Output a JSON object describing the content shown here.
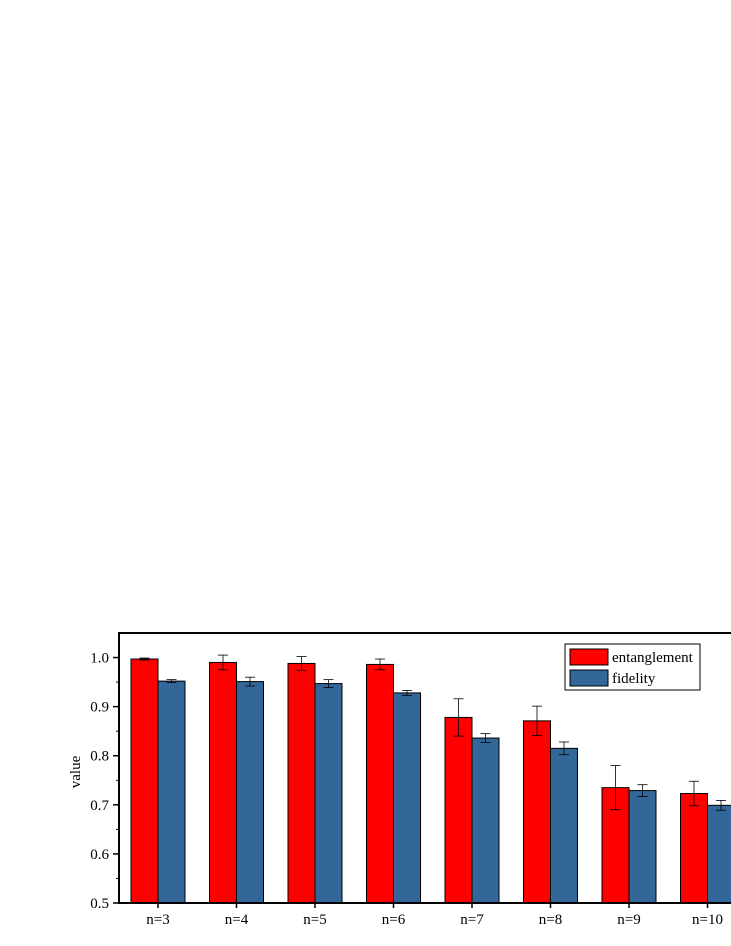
{
  "chart_data": {
    "type": "bar",
    "categories": [
      "n=3",
      "n=4",
      "n=5",
      "n=6",
      "n=7",
      "n=8",
      "n=9",
      "n=10"
    ],
    "series": [
      {
        "name": "entanglement",
        "color": "#ff0000",
        "values": [
          0.997,
          0.99,
          0.988,
          0.986,
          0.878,
          0.871,
          0.735,
          0.723
        ],
        "errors": [
          0.002,
          0.015,
          0.014,
          0.011,
          0.038,
          0.03,
          0.045,
          0.025
        ]
      },
      {
        "name": "fidelity",
        "color": "#336699",
        "values": [
          0.952,
          0.951,
          0.947,
          0.928,
          0.836,
          0.815,
          0.729,
          0.699
        ],
        "errors": [
          0.003,
          0.009,
          0.008,
          0.005,
          0.009,
          0.013,
          0.012,
          0.01
        ]
      }
    ],
    "ylabel": "value",
    "xlabel": "",
    "ylim": [
      0.5,
      1.05
    ],
    "yticks": [
      0.5,
      0.6,
      0.7,
      0.8,
      0.9,
      1.0
    ],
    "ytick_labels": [
      "0.5",
      "0.6",
      "0.7",
      "0.8",
      "0.9",
      "1.0"
    ],
    "legend_position": "top-right",
    "grid": false
  }
}
